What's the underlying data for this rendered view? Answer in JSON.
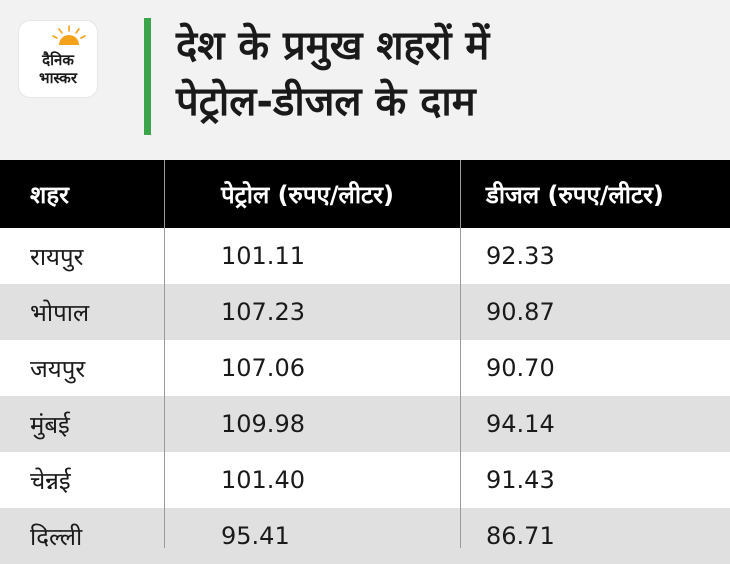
{
  "brand": {
    "logo_lines": [
      "दैनिक",
      "भास्कर"
    ],
    "accent_color": "#3aa54a",
    "sun_color": "#f4a21a"
  },
  "headline": {
    "line1": "देश के प्रमुख शहरों में",
    "line2": "पेट्रोल-डीजल के दाम"
  },
  "table": {
    "headers": [
      "शहर",
      "पेट्रोल (रुपए/लीटर)",
      "डीजल (रुपए/लीटर)"
    ],
    "rows": [
      [
        "रायपुर",
        "101.11",
        "92.33"
      ],
      [
        "भोपाल",
        "107.23",
        "90.87"
      ],
      [
        "जयपुर",
        "107.06",
        "90.70"
      ],
      [
        "मुंबई",
        "109.98",
        "94.14"
      ],
      [
        "चेन्नई",
        "101.40",
        "91.43"
      ],
      [
        "दिल्ली",
        "95.41",
        "86.71"
      ]
    ]
  }
}
